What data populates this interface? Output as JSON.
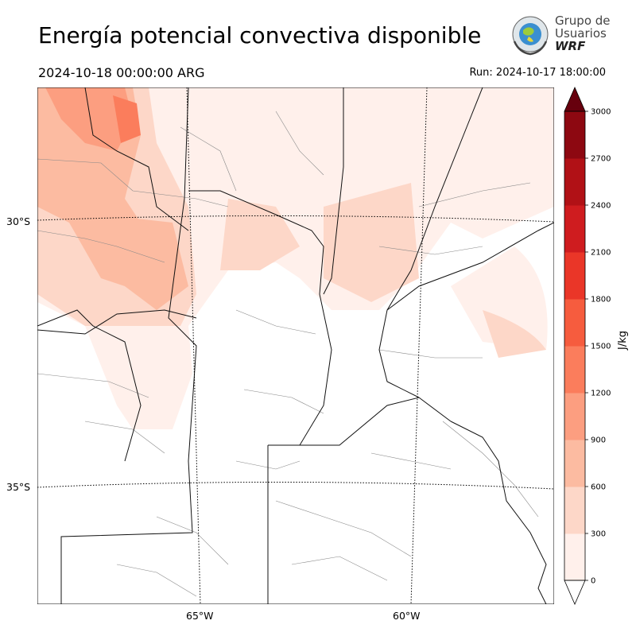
{
  "title": "Energía potencial convectiva disponible",
  "valid_time": "2024-10-18 00:00:00 ARG",
  "run_time": "Run: 2024-10-17 18:00:00",
  "logo": {
    "line1": "Grupo de",
    "line2": "Usuarios",
    "line3": "WRF",
    "icon": "globe-laurel-emblem"
  },
  "map": {
    "lat_labels": [
      "30°S",
      "35°S"
    ],
    "lon_labels": [
      "65°W",
      "60°W"
    ],
    "gridlines": "dotted",
    "field_color": "#fee5d9"
  },
  "colorbar": {
    "unit": "J/kg",
    "ticks": [
      "0",
      "300",
      "600",
      "900",
      "1200",
      "1500",
      "1800",
      "2100",
      "2400",
      "2700",
      "3000"
    ],
    "colors": [
      "#fff0eb",
      "#fdd7c8",
      "#fcbba1",
      "#fc9e80",
      "#fb7d5c",
      "#f65c3e",
      "#ea3628",
      "#cf1c1f",
      "#b11116",
      "#8d0811",
      "#67000d"
    ],
    "extend": "both"
  }
}
